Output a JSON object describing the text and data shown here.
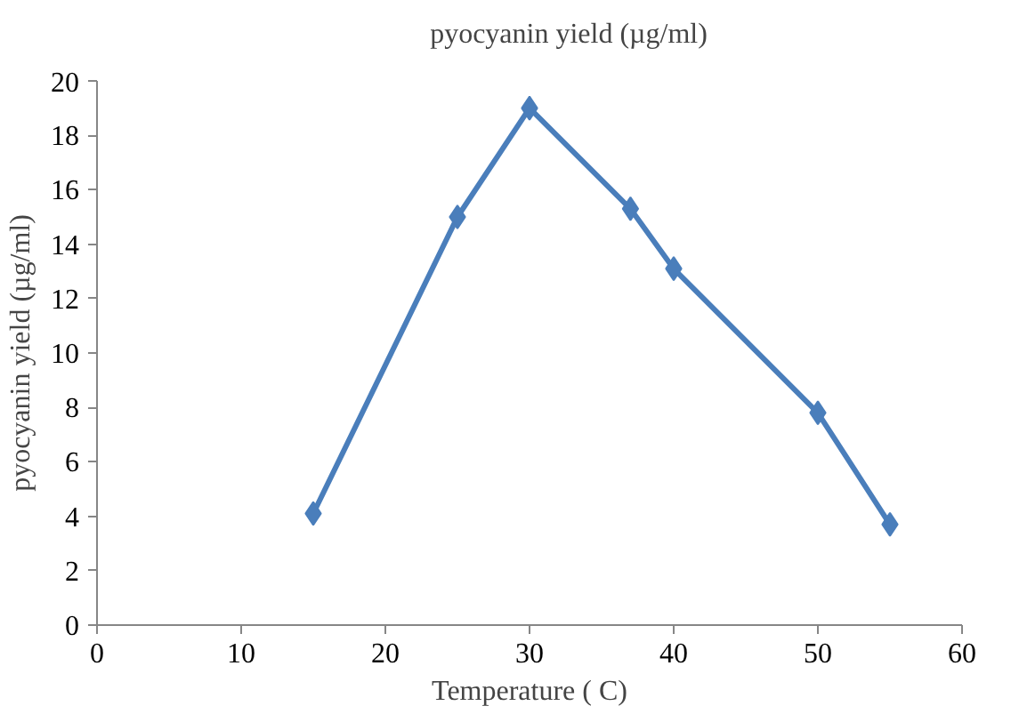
{
  "chart_data": {
    "type": "line",
    "xlabel": "Temperature ( C)",
    "ylabel": "pyocyanin yield (µg/ml)",
    "x": [
      15,
      25,
      30,
      37,
      40,
      50,
      55
    ],
    "series": [
      {
        "name": "pyocyanin yield (µg/ml)",
        "color": "#4a7ebb",
        "values": [
          4.1,
          15.0,
          19.0,
          15.3,
          13.1,
          7.8,
          3.7
        ]
      }
    ],
    "xlim": [
      0,
      60
    ],
    "xticks": [
      0,
      10,
      20,
      30,
      40,
      50,
      60
    ],
    "ylim": [
      0,
      20
    ],
    "yticks": [
      0,
      2,
      4,
      6,
      8,
      10,
      12,
      14,
      16,
      18,
      20
    ],
    "grid": false,
    "legend": "top",
    "marker": "diamond",
    "line_style": "solid"
  }
}
